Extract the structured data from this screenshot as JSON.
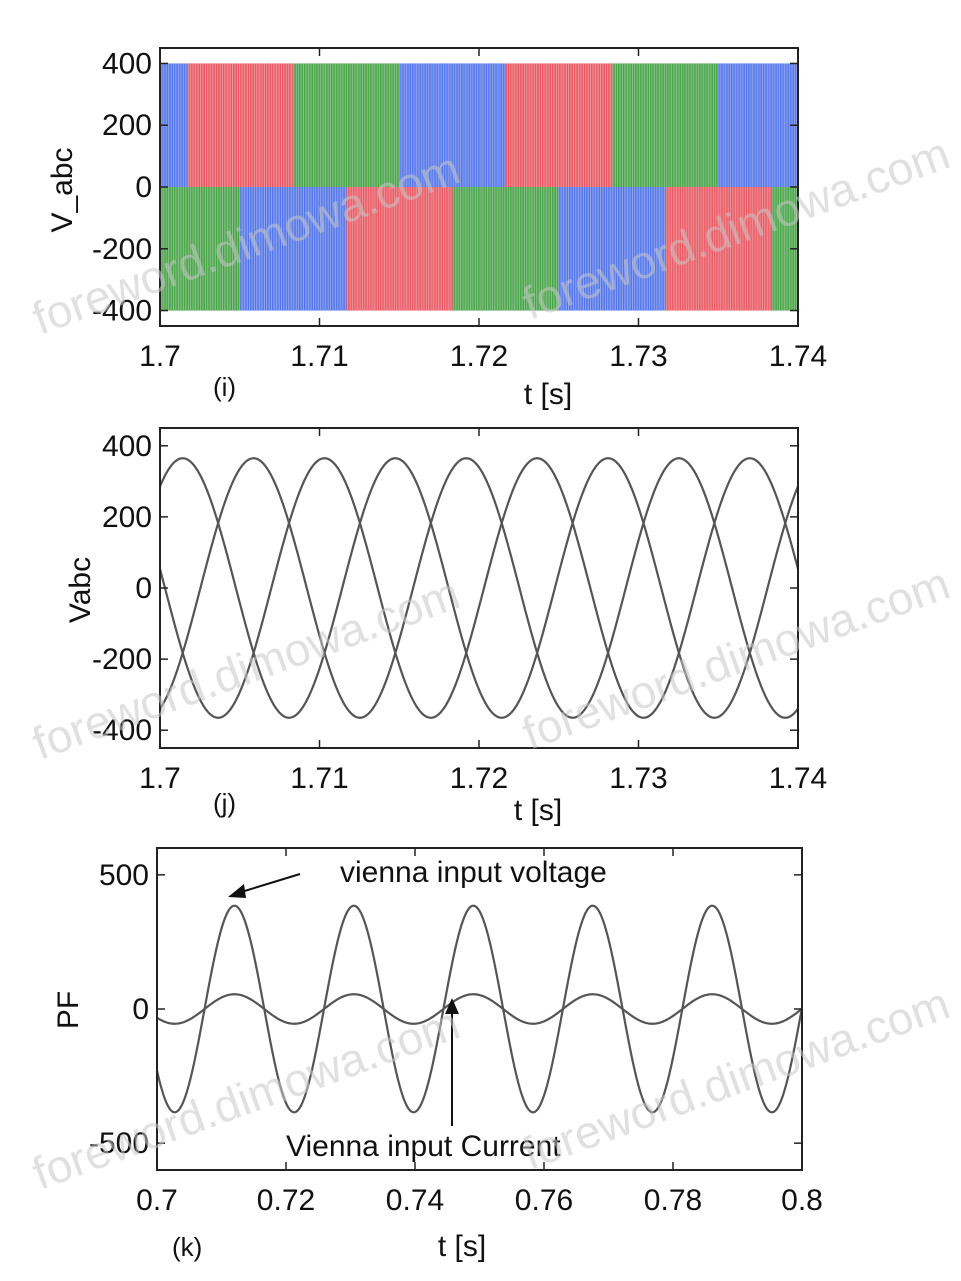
{
  "watermark": "foreword.dimowa.com",
  "chart_data": [
    {
      "type": "line",
      "panel": "(i)",
      "ylabel": "V_abc",
      "xlabel": "t [s]",
      "xlim": [
        1.7,
        1.74
      ],
      "ylim": [
        -450,
        450
      ],
      "xticks": [
        "1.7",
        "1.71",
        "1.72",
        "1.73",
        "1.74"
      ],
      "yticks": [
        "400",
        "200",
        "0",
        "-200",
        "-400"
      ],
      "description_values": {
        "pulse_levels": [
          400,
          0,
          -400
        ],
        "fundamental_hz": 50,
        "phase_colors": [
          "#e8505a",
          "#3f9f3f",
          "#4a6ee8"
        ],
        "phase_offsets_deg": [
          0,
          -120,
          120
        ]
      }
    },
    {
      "type": "line",
      "panel": "(j)",
      "ylabel": "Vabc",
      "xlabel": "t [s]",
      "xlim": [
        1.7,
        1.74
      ],
      "ylim": [
        -450,
        450
      ],
      "xticks": [
        "1.7",
        "1.71",
        "1.72",
        "1.73",
        "1.74"
      ],
      "yticks": [
        "400",
        "200",
        "0",
        "-200",
        "-400"
      ],
      "series": [
        {
          "amplitude": 365,
          "frequency_hz": 75,
          "phase_deg": 0
        },
        {
          "amplitude": 365,
          "frequency_hz": 75,
          "phase_deg": -120
        },
        {
          "amplitude": 365,
          "frequency_hz": 75,
          "phase_deg": 120
        }
      ]
    },
    {
      "type": "line",
      "panel": "(k)",
      "ylabel": "PF",
      "xlabel": "t [s]",
      "xlim": [
        0.7,
        0.8
      ],
      "ylim": [
        -600,
        600
      ],
      "xticks": [
        "0.7",
        "0.72",
        "0.74",
        "0.76",
        "0.78",
        "0.8"
      ],
      "yticks": [
        "500",
        "0",
        "-500"
      ],
      "series": [
        {
          "name": "vienna input voltage",
          "amplitude": 385,
          "frequency_hz": 54,
          "peak_time": 0.712
        },
        {
          "name": "Vienna input Current",
          "amplitude": 55,
          "frequency_hz": 54,
          "peak_time": 0.712
        }
      ],
      "annotations": [
        "vienna input voltage",
        "Vienna input Current"
      ]
    }
  ]
}
